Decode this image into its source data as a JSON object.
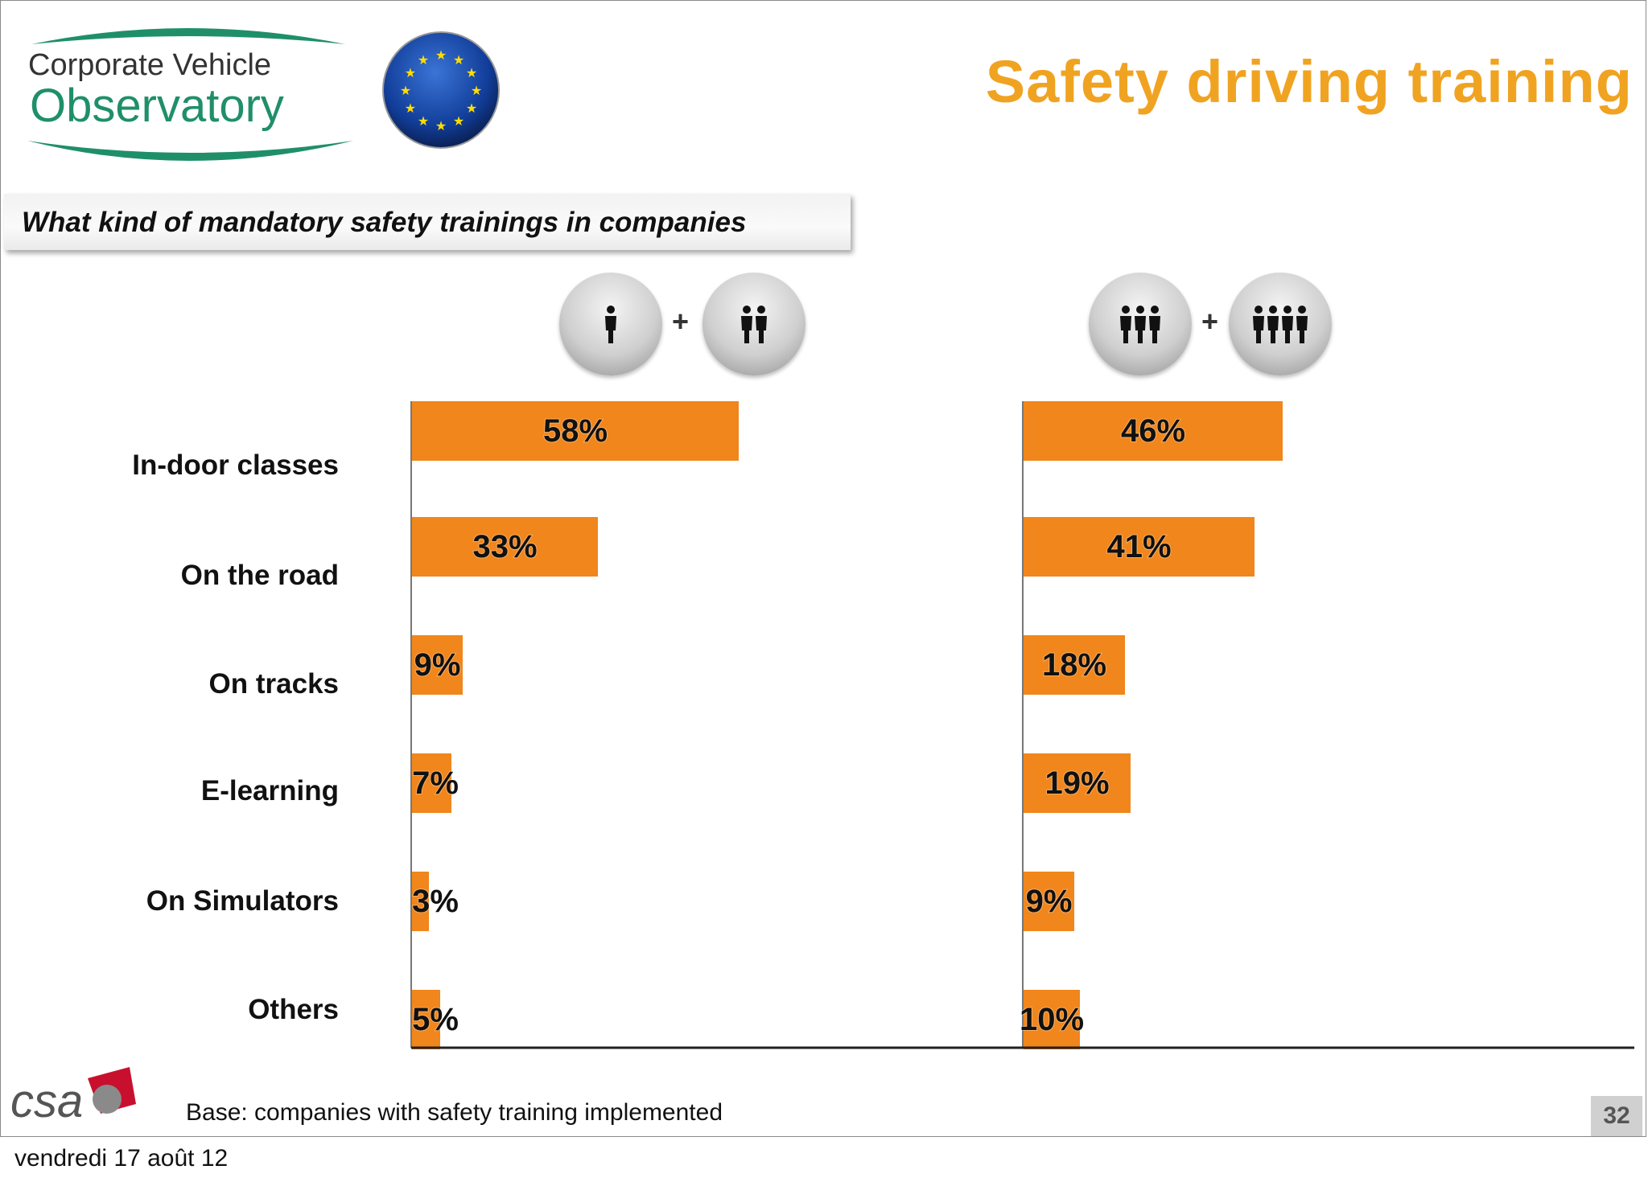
{
  "header": {
    "logo_line1": "Corporate Vehicle",
    "logo_line2": "Observatory",
    "title": "Safety driving training"
  },
  "question": "What kind of mandatory safety trainings in companies",
  "groups": [
    {
      "icon_left": "one-person-icon",
      "icon_right": "two-persons-icon",
      "plus": "+"
    },
    {
      "icon_left": "three-persons-icon",
      "icon_right": "four-persons-icon",
      "plus": "+"
    }
  ],
  "chart_data": {
    "type": "bar",
    "orientation": "horizontal",
    "categories": [
      "In-door classes",
      "On the road",
      "On tracks",
      "E-learning",
      "On Simulators",
      "Others"
    ],
    "series": [
      {
        "values": [
          58,
          33,
          9,
          7,
          3,
          5
        ],
        "labels": [
          "58%",
          "33%",
          "9%",
          "7%",
          "3%",
          "5%"
        ]
      },
      {
        "values": [
          46,
          41,
          18,
          19,
          9,
          10
        ],
        "labels": [
          "46%",
          "41%",
          "18%",
          "19%",
          "9%",
          "10%"
        ]
      }
    ],
    "unit": "%",
    "xlim": [
      0,
      100
    ],
    "bar_color": "#f0861c",
    "grid": false,
    "legend": "none"
  },
  "footer": {
    "csa_logo": "csa",
    "base_note": "Base: companies with safety training implemented",
    "page_number": "32",
    "date": "vendredi 17 août 12"
  }
}
